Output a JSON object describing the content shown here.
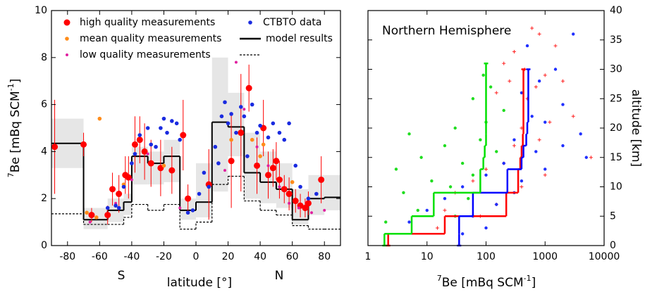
{
  "chart_data": [
    {
      "type": "scatter",
      "xlabel": "latitude [°]",
      "ylabel": [
        "7",
        "Be [mBq SCM",
        "-1",
        "]"
      ],
      "annotations": [
        "S",
        "N"
      ],
      "xlim": [
        -90,
        90
      ],
      "xticks": [
        -80,
        -60,
        -40,
        -20,
        0,
        20,
        40,
        60,
        80
      ],
      "ylim": [
        0,
        10
      ],
      "yticks": [
        0,
        2,
        4,
        6,
        8,
        10
      ],
      "series": [
        {
          "kind": "band",
          "color": "#e6e6e6",
          "bins": [
            -90,
            -70,
            -55,
            -45,
            -40,
            -30,
            -20,
            -10,
            0,
            10,
            20,
            30,
            40,
            50,
            60,
            70,
            80,
            90
          ],
          "low": [
            3.3,
            0.7,
            1.0,
            1.3,
            2.6,
            2.6,
            2.7,
            1.1,
            1.2,
            2.3,
            3.8,
            2.0,
            1.8,
            1.6,
            0.9,
            1.3,
            1.5
          ],
          "high": [
            5.4,
            1.6,
            2.0,
            2.2,
            4.2,
            4.0,
            4.5,
            2.0,
            3.5,
            8.0,
            6.5,
            4.8,
            4.0,
            3.5,
            2.4,
            3.0,
            3.0
          ]
        },
        {
          "kind": "step",
          "name": "model results",
          "color": "#000000",
          "dash": false,
          "bins": [
            -90,
            -70,
            -55,
            -45,
            -40,
            -30,
            -20,
            -10,
            0,
            10,
            20,
            30,
            40,
            50,
            60,
            70,
            80,
            90
          ],
          "values": [
            4.35,
            1.1,
            1.5,
            1.85,
            3.8,
            3.5,
            3.8,
            1.5,
            1.85,
            5.25,
            5.05,
            3.1,
            2.7,
            2.4,
            1.1,
            2.0,
            2.05
          ]
        },
        {
          "kind": "step",
          "color": "#000000",
          "dash": true,
          "bins": [
            -90,
            -70,
            -55,
            -45,
            -40,
            -30,
            -20,
            -10,
            0,
            10,
            20,
            30,
            40,
            50,
            60,
            70,
            80,
            90
          ],
          "values": [
            1.35,
            0.9,
            0.9,
            1.2,
            1.75,
            1.5,
            1.75,
            0.7,
            1.0,
            2.6,
            2.95,
            1.9,
            1.5,
            1.3,
            0.85,
            0.7,
            0.7
          ]
        },
        {
          "kind": "points",
          "name": "high quality measurements",
          "color": "#ff0000",
          "size": 4.5,
          "x": [
            -88,
            -70,
            -65,
            -55,
            -52,
            -48,
            -44,
            -42,
            -38,
            -35,
            -32,
            -28,
            -22,
            -15,
            -8,
            -5,
            8,
            22,
            28,
            33,
            38,
            42,
            45,
            48,
            50,
            52,
            55,
            58,
            62,
            65,
            68,
            70,
            78
          ],
          "values": [
            4.2,
            4.3,
            1.3,
            1.3,
            2.4,
            2.2,
            3.0,
            2.9,
            4.3,
            4.5,
            4.0,
            3.5,
            3.3,
            3.2,
            4.7,
            2.0,
            2.6,
            3.6,
            4.8,
            6.7,
            3.4,
            5.0,
            3.0,
            3.3,
            3.6,
            2.8,
            2.4,
            2.2,
            1.9,
            1.7,
            1.6,
            1.8,
            2.8
          ],
          "errors": [
            2.0,
            0.5,
            0.3,
            0.4,
            0.7,
            0.8,
            0.8,
            0.9,
            1.2,
            1.0,
            1.2,
            1.0,
            1.2,
            1.0,
            1.5,
            0.6,
            1.5,
            2.0,
            2.5,
            1.0,
            1.2,
            1.2,
            1.0,
            0.8,
            0.8,
            0.8,
            0.6,
            0.7,
            0.5,
            0.5,
            0.4,
            0.5,
            1.0
          ]
        },
        {
          "kind": "points",
          "name": "mean quality measurements",
          "color": "#ff8c1a",
          "size": 2.8,
          "x": [
            -68,
            -62,
            -60,
            -45,
            -20,
            22,
            35,
            40,
            42,
            60
          ],
          "values": [
            1.4,
            1.2,
            5.4,
            2.6,
            3.4,
            4.5,
            4.5,
            3.8,
            4.3,
            2.7
          ]
        },
        {
          "kind": "points",
          "name": "low quality measurements",
          "color": "#e020a0",
          "size": 2,
          "x": [
            -66,
            -50,
            -40,
            -30,
            -10,
            18,
            25,
            30,
            38,
            45,
            52,
            58,
            64,
            72,
            80
          ],
          "values": [
            1.0,
            1.8,
            2.8,
            3.9,
            1.6,
            3.2,
            7.8,
            5.8,
            4.2,
            3.4,
            2.5,
            1.8,
            1.6,
            1.4,
            1.5
          ]
        },
        {
          "kind": "points",
          "name": "CTBTO data",
          "color": "#1a2be0",
          "size": 2.8,
          "x": [
            -55,
            -50,
            -48,
            -45,
            -40,
            -38,
            -35,
            -30,
            -28,
            -25,
            -22,
            -20,
            -18,
            -15,
            -12,
            -10,
            -5,
            -2,
            2,
            5,
            8,
            12,
            14,
            16,
            18,
            20,
            22,
            25,
            28,
            30,
            32,
            35,
            38,
            40,
            45,
            48,
            52,
            55,
            58,
            62,
            65,
            70,
            75
          ],
          "values": [
            1.6,
            1.7,
            1.6,
            2.5,
            3.5,
            3.9,
            4.7,
            5.0,
            4.3,
            4.2,
            5.0,
            5.4,
            4.8,
            5.3,
            5.2,
            4.5,
            1.4,
            1.5,
            2.2,
            3.1,
            2.5,
            4.2,
            3.5,
            5.5,
            6.1,
            5.2,
            5.6,
            4.8,
            5.9,
            5.5,
            3.8,
            6.0,
            4.8,
            5.1,
            4.6,
            5.2,
            4.8,
            4.5,
            5.2,
            3.4,
            2.5,
            2.0,
            2.2
          ]
        }
      ]
    },
    {
      "type": "scatter",
      "annotation": "Northern Hemisphere",
      "xlabel": [
        "7",
        "Be [mBq SCM",
        "-1",
        "]"
      ],
      "ylabel": "altitude [km]",
      "xlog": true,
      "xlim": [
        1,
        10000
      ],
      "xticks": [
        1,
        10,
        100,
        1000,
        10000
      ],
      "ylim": [
        0,
        40
      ],
      "yticks": [
        0,
        5,
        10,
        15,
        20,
        25,
        30,
        35,
        40
      ],
      "series": [
        {
          "kind": "points",
          "marker": "plus",
          "color": "#ff2020",
          "size": 2.5,
          "x": [
            600,
            800,
            1500,
            300,
            200,
            450,
            1000,
            250,
            700,
            2000,
            150,
            500,
            3000,
            1200,
            400,
            800,
            300,
            6000,
            200,
            100,
            1000,
            60,
            400,
            30,
            150,
            20,
            80,
            15
          ],
          "values": [
            37,
            36,
            34,
            33,
            31,
            30,
            29,
            28,
            27,
            28,
            26,
            25,
            22,
            21,
            20,
            18,
            17,
            15,
            14,
            13,
            12,
            11,
            10,
            9,
            7,
            6,
            5,
            3
          ]
        },
        {
          "kind": "points",
          "marker": "star",
          "color": "#2030ff",
          "size": 2.2,
          "x": [
            3000,
            500,
            1500,
            800,
            400,
            2000,
            600,
            1000,
            4000,
            300,
            2000,
            700,
            5000,
            200,
            1000,
            100,
            400,
            40,
            300,
            20,
            150,
            10,
            60,
            5,
            100,
            40
          ],
          "values": [
            36,
            34,
            30,
            28,
            26,
            24,
            22,
            21,
            19,
            18,
            17,
            16,
            15,
            14,
            13,
            12,
            11,
            10,
            9,
            8,
            7,
            6,
            5,
            4,
            3,
            2
          ]
        },
        {
          "kind": "points",
          "marker": "star",
          "color": "#20dd20",
          "size": 2.2,
          "x": [
            90,
            120,
            60,
            200,
            100,
            30,
            5,
            80,
            20,
            150,
            8,
            40,
            3,
            60,
            12,
            25,
            4,
            50,
            7,
            30,
            2
          ],
          "values": [
            29,
            27,
            25,
            23,
            21,
            20,
            19,
            18,
            17,
            16,
            15,
            14,
            13,
            12,
            11,
            10,
            9,
            8,
            6,
            5,
            4
          ]
        },
        {
          "kind": "vstep",
          "color": "#ff0000",
          "bins": [
            0,
            2,
            5,
            9,
            13,
            15,
            17,
            19,
            30
          ],
          "values": [
            2.2,
            20,
            220,
            350,
            380,
            400,
            420,
            430
          ]
        },
        {
          "kind": "vstep",
          "color": "#0000ff",
          "bins": [
            0,
            2,
            5,
            9,
            13,
            15,
            17,
            19,
            21,
            30
          ],
          "values": [
            35,
            35,
            60,
            230,
            400,
            430,
            480,
            500,
            520
          ]
        },
        {
          "kind": "vstep",
          "color": "#00e000",
          "bins": [
            0,
            2,
            5,
            9,
            13,
            15,
            17,
            19,
            31
          ],
          "values": [
            1.9,
            5.5,
            13,
            80,
            90,
            95,
            100,
            100
          ]
        }
      ]
    }
  ]
}
